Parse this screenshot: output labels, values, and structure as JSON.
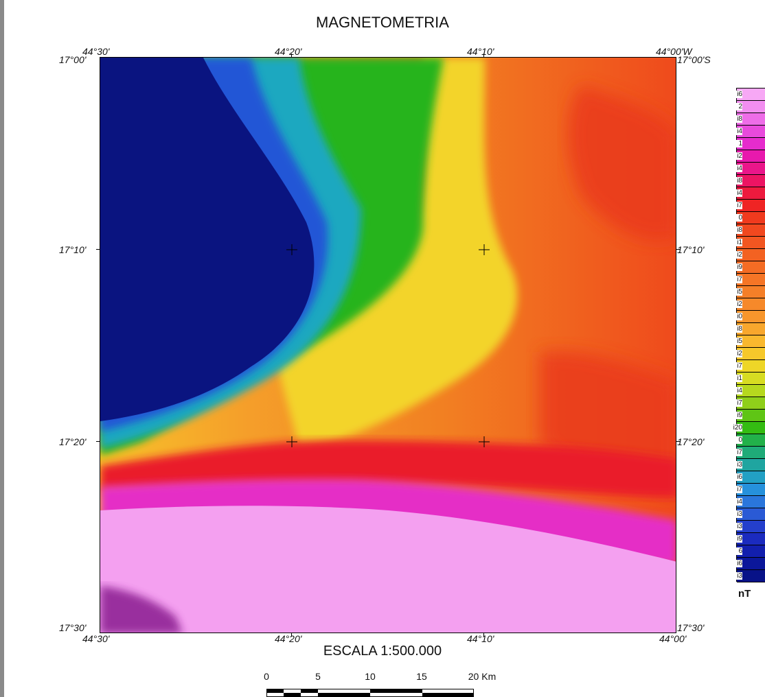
{
  "title": "MAGNETOMETRIA",
  "top_labels": [
    "44°30'",
    "44°20'",
    "44°10'",
    "44°00'W"
  ],
  "bottom_labels": [
    "44°30'",
    "44°20'",
    "44°10'",
    "44°00'"
  ],
  "left_labels": [
    "17°00'",
    "17°10'",
    "17°20'",
    "17°30'"
  ],
  "right_labels": [
    "17°00'S",
    "17°10'",
    "17°20'",
    "17°30'"
  ],
  "scale": {
    "title": "ESCALA 1:500.000",
    "ticks": [
      "0",
      "5",
      "10",
      "15",
      "20 Km"
    ]
  },
  "legend": {
    "unit": "nT",
    "values": [
      "i6",
      "2",
      "i8",
      "i4",
      "1",
      "i2",
      "i4",
      "i8",
      "i4",
      "i7",
      "0",
      "i8",
      "i1",
      "i2",
      "i9",
      "i7",
      "i5",
      "i2",
      "i0",
      "i8",
      "i5",
      "i2",
      "i7",
      "i1",
      "i4",
      "i7",
      "i9",
      "i20",
      "0",
      "i7",
      "i3",
      "i6",
      "i7",
      "i4",
      "i3",
      "i3",
      "i9",
      "6",
      "i6",
      "i3"
    ],
    "colors": [
      "#f7a8f5",
      "#f28ef0",
      "#ee6de8",
      "#e84adc",
      "#e62ccd",
      "#e819ad",
      "#ea168a",
      "#ec1463",
      "#ed1a3e",
      "#ef2424",
      "#f03a1e",
      "#f1481f",
      "#f25621",
      "#f36222",
      "#f46c24",
      "#f57526",
      "#f57f28",
      "#f6892a",
      "#f7962c",
      "#f8a72d",
      "#f9b82e",
      "#f6c82b",
      "#eed627",
      "#d7dc22",
      "#b6d81e",
      "#8fcf1a",
      "#5fc515",
      "#34bc12",
      "#22b14a",
      "#1fab78",
      "#1fa5a0",
      "#22a0c4",
      "#2691dc",
      "#2a76dc",
      "#2a5ad5",
      "#243fcc",
      "#1b2bbf",
      "#121fae",
      "#0b179a",
      "#081288"
    ]
  },
  "map_colors": {
    "deep_blue": "#0a1480",
    "pink_light": "#f4a0f0",
    "purple_dark": "#8a1a90"
  }
}
